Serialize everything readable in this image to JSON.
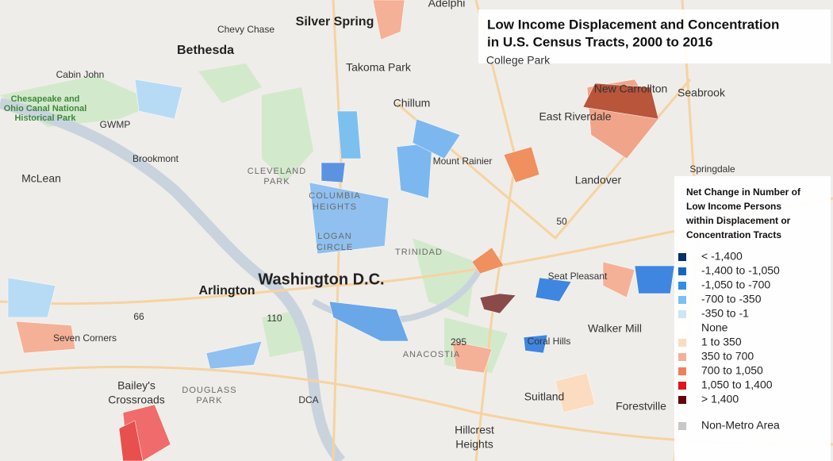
{
  "title": {
    "lines": [
      "Low Income Displacement and Concentration",
      "in U.S. Census Tracts, 2000 to 2016"
    ]
  },
  "legend": {
    "title_lines": [
      "Net Change in Number of",
      "Low Income Persons",
      "within Displacement or",
      "Concentration Tracts"
    ],
    "items": [
      {
        "label": "< -1,400",
        "color": "#08306b"
      },
      {
        "label": "-1,400 to -1,050",
        "color": "#1565c0"
      },
      {
        "label": "-1,050 to -700",
        "color": "#2f8fe6"
      },
      {
        "label": "-700 to -350",
        "color": "#7cc0f0"
      },
      {
        "label": "-350 to -1",
        "color": "#cde6f7"
      },
      {
        "label": "None",
        "color": "#ffffff"
      },
      {
        "label": "1 to 350",
        "color": "#fbdcc0"
      },
      {
        "label": "350 to 700",
        "color": "#f4b198"
      },
      {
        "label": "700 to 1,050",
        "color": "#f0805c"
      },
      {
        "label": "1,050 to 1,400",
        "color": "#e0141c"
      },
      {
        "label": "> 1,400",
        "color": "#67000d"
      },
      {
        "label": "Non-Metro Area",
        "color": "#c8c8c8"
      }
    ]
  },
  "places": [
    {
      "lines": [
        "Silver Spring"
      ]
    },
    {
      "lines": [
        "Chevy Chase"
      ]
    },
    {
      "lines": [
        "Bethesda"
      ]
    },
    {
      "lines": [
        "Adelphi"
      ]
    },
    {
      "lines": [
        "Takoma Park"
      ]
    },
    {
      "lines": [
        "College Park"
      ]
    },
    {
      "lines": [
        "Cabin John"
      ]
    },
    {
      "lines": [
        "Chesapeake and",
        "Ohio Canal National",
        "Historical Park"
      ]
    },
    {
      "lines": [
        "GWMP"
      ]
    },
    {
      "lines": [
        "Chillum"
      ]
    },
    {
      "lines": [
        "New Carrollton"
      ]
    },
    {
      "lines": [
        "Seabrook"
      ]
    },
    {
      "lines": [
        "East Riverdale"
      ]
    },
    {
      "lines": [
        "Brookmont"
      ]
    },
    {
      "lines": [
        "McLean"
      ]
    },
    {
      "lines": [
        "CLEVELAND",
        "PARK"
      ]
    },
    {
      "lines": [
        "Mount Rainier"
      ]
    },
    {
      "lines": [
        "Springdale"
      ]
    },
    {
      "lines": [
        "Landover"
      ]
    },
    {
      "lines": [
        "COLUMBIA",
        "HEIGHTS"
      ]
    },
    {
      "lines": [
        "LOGAN",
        "CIRCLE"
      ]
    },
    {
      "lines": [
        "TRINIDAD"
      ]
    },
    {
      "lines": [
        "Washington D.C."
      ]
    },
    {
      "lines": [
        "Arlington"
      ]
    },
    {
      "lines": [
        "Seat Pleasant"
      ]
    },
    {
      "lines": [
        "Seven Corners"
      ]
    },
    {
      "lines": [
        "Walker Mill"
      ]
    },
    {
      "lines": [
        "Coral Hills"
      ]
    },
    {
      "lines": [
        "ANACOSTIA"
      ]
    },
    {
      "lines": [
        "Bailey's",
        "Crossroads"
      ]
    },
    {
      "lines": [
        "DOUGLASS",
        "PARK"
      ]
    },
    {
      "lines": [
        "DCA"
      ]
    },
    {
      "lines": [
        "Suitland"
      ]
    },
    {
      "lines": [
        "Forestville"
      ]
    },
    {
      "lines": [
        "Hillcrest",
        "Heights"
      ]
    },
    {
      "lines": [
        "110"
      ]
    },
    {
      "lines": [
        "295"
      ]
    },
    {
      "lines": [
        "50"
      ]
    },
    {
      "lines": [
        "66"
      ]
    }
  ]
}
